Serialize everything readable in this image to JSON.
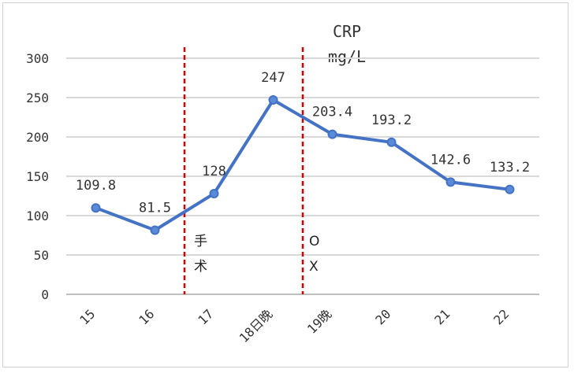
{
  "chart_data": {
    "type": "line",
    "title": "CRP",
    "subtitle": "mg/L",
    "categories": [
      "15",
      "16",
      "17",
      "18日晚",
      "19晚",
      "20",
      "21",
      "22"
    ],
    "values": [
      109.8,
      81.5,
      128,
      247,
      203.4,
      193.2,
      142.6,
      133.2
    ],
    "data_labels": [
      "109.8",
      "81.5",
      "128",
      "247",
      "203.4",
      "193.2",
      "142.6",
      "133.2"
    ],
    "ylim": [
      0,
      300
    ],
    "yticks": [
      0,
      50,
      100,
      150,
      200,
      250,
      300
    ],
    "grid": true,
    "series_color": "#4472c4",
    "marker_fill": "#5b8ad8",
    "annotation_color": "#cc0000",
    "annotations": [
      {
        "after_category": "16",
        "text_lines": [
          "手",
          "术"
        ]
      },
      {
        "after_category": "18日晚",
        "text_lines": [
          "O",
          "X"
        ]
      }
    ]
  }
}
